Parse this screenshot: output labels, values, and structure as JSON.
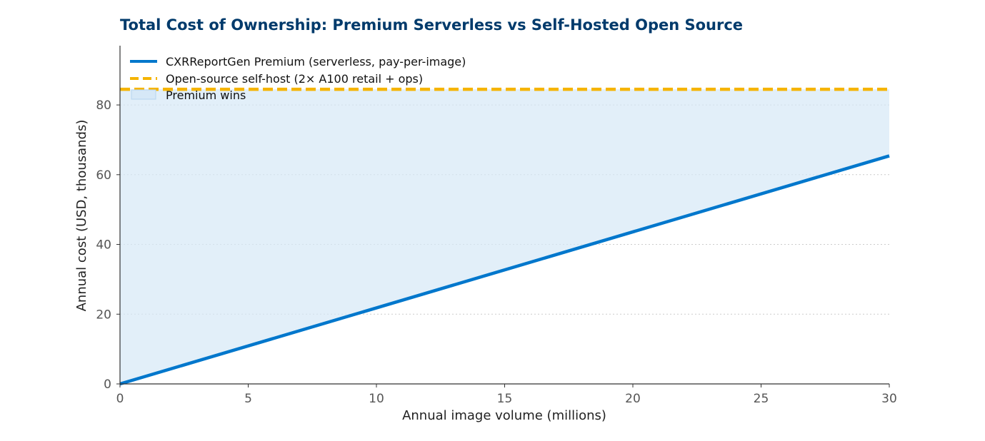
{
  "chart_data": {
    "type": "line",
    "title": "Total Cost of Ownership: Premium Serverless vs Self-Hosted Open Source",
    "xlabel": "Annual image volume (millions)",
    "ylabel": "Annual cost (USD, thousands)",
    "xlim": [
      0,
      30
    ],
    "ylim": [
      0,
      97
    ],
    "x_ticks": [
      0,
      5,
      10,
      15,
      20,
      25,
      30
    ],
    "y_ticks": [
      0,
      20,
      40,
      60,
      80
    ],
    "grid": "horizontal dotted",
    "legend_position": "top-left",
    "series": [
      {
        "name": "CXRReportGen Premium (serverless, pay-per-image)",
        "style": "solid",
        "color": "#0077cc",
        "x": [
          0,
          30
        ],
        "y": [
          0,
          65.4
        ]
      },
      {
        "name": "Open-source self-host (2× A100 retail + ops)",
        "style": "dashed",
        "color": "#f5b400",
        "x": [
          0,
          30
        ],
        "y": [
          84.5,
          84.5
        ]
      }
    ],
    "fill_between": {
      "name": "Premium wins",
      "color": "#d6e8f7",
      "between": [
        "CXRReportGen Premium (serverless, pay-per-image)",
        "Open-source self-host (2× A100 retail + ops)"
      ]
    }
  }
}
